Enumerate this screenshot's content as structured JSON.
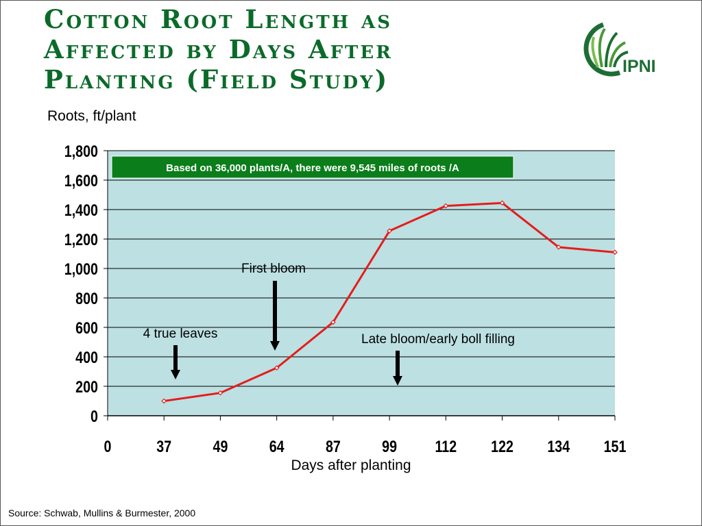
{
  "title_lines": [
    "Cotton Root Length as",
    "Affected by Days After",
    "Planting (Field Study)"
  ],
  "logo": {
    "text": "IPNI",
    "icon": "wheat-leaf-logo-icon",
    "color": "#1d6e34"
  },
  "colors": {
    "title": "#0b6a2a",
    "plot_bg": "#bde0e2",
    "series": "#e51c1c",
    "note_bg": "#0b7d1a"
  },
  "chart_data": {
    "type": "line",
    "title": "Cotton Root Length as Affected by Days After Planting (Field Study)",
    "ylabel": "Roots, ft/plant",
    "xlabel": "Days after planting",
    "x_categories": [
      "0",
      "37",
      "49",
      "64",
      "87",
      "99",
      "112",
      "122",
      "134",
      "151"
    ],
    "series": [
      {
        "values": [
          null,
          100,
          155,
          325,
          635,
          1255,
          1425,
          1445,
          1145,
          1110
        ]
      }
    ],
    "ylim": [
      0,
      1800
    ],
    "yticks": [
      0,
      200,
      400,
      600,
      800,
      1000,
      1200,
      1400,
      1600,
      1800
    ],
    "ytick_labels": [
      "0",
      "200",
      "400",
      "600",
      "800",
      "1,000",
      "1,200",
      "1,400",
      "1,600",
      "1,800"
    ],
    "grid": true,
    "note": "Based on 36,000 plants/A, there were 9,545 miles of roots /A",
    "annotations": [
      {
        "text": "4 true leaves",
        "x_category": "37"
      },
      {
        "text": "First bloom",
        "x_category": "64"
      },
      {
        "text": "Late bloom/early boll filling",
        "x_category": "99"
      }
    ]
  },
  "source": "Source: Schwab, Mullins & Burmester, 2000"
}
